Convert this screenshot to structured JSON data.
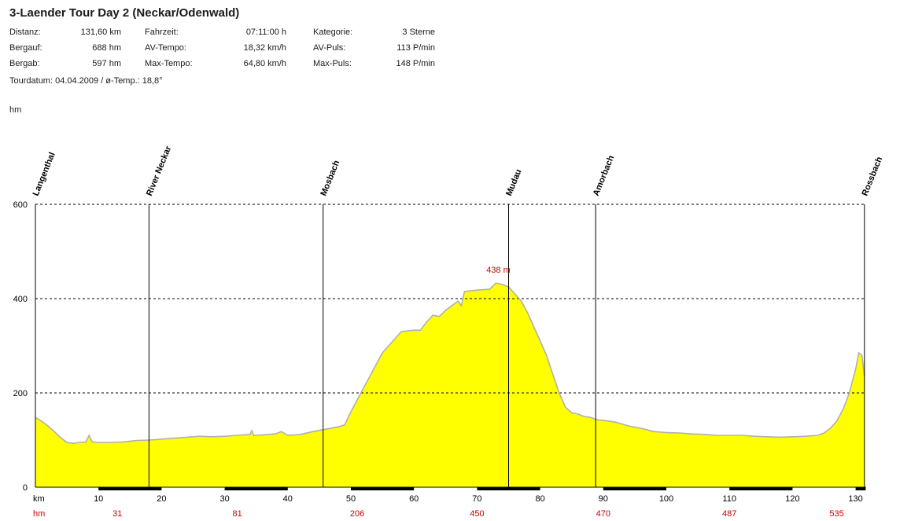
{
  "header": {
    "title": "3-Laender Tour Day 2 (Neckar/Odenwald)",
    "stats": [
      [
        {
          "label": "Distanz:",
          "value": "131,60 km"
        },
        {
          "label": "Fahrzeit:",
          "value": "07:11:00 h"
        },
        {
          "label": "Kategorie:",
          "value": "3 Sterne"
        }
      ],
      [
        {
          "label": "Bergauf:",
          "value": "688 hm"
        },
        {
          "label": "AV-Tempo:",
          "value": "18,32 km/h"
        },
        {
          "label": "AV-Puls:",
          "value": "113 P/min"
        }
      ],
      [
        {
          "label": "Bergab:",
          "value": "597 hm"
        },
        {
          "label": "Max-Tempo:",
          "value": "64,80 km/h"
        },
        {
          "label": "Max-Puls:",
          "value": "148 P/min"
        }
      ]
    ],
    "tour_line": "Tourdatum: 04.04.2009  /  ø-Temp.: 18,8°"
  },
  "chart_data": {
    "type": "area",
    "xlabel": "km",
    "ylabel": "hm",
    "xlim": [
      0,
      131.6
    ],
    "ylim": [
      0,
      600
    ],
    "grid": true,
    "x_ticks": [
      10,
      20,
      30,
      40,
      50,
      60,
      70,
      80,
      90,
      100,
      110,
      120,
      130
    ],
    "y_ticks": [
      0,
      200,
      400,
      600
    ],
    "hm_row": [
      {
        "km": 13,
        "hm": "31"
      },
      {
        "km": 32,
        "hm": "81"
      },
      {
        "km": 51,
        "hm": "206"
      },
      {
        "km": 70,
        "hm": "450"
      },
      {
        "km": 90,
        "hm": "470"
      },
      {
        "km": 110,
        "hm": "487"
      },
      {
        "km": 127,
        "hm": "535"
      }
    ],
    "waypoints": [
      {
        "name": "Langenthal",
        "km": 0
      },
      {
        "name": "River Neckar",
        "km": 18
      },
      {
        "name": "Mosbach",
        "km": 45.6
      },
      {
        "name": "Mudau",
        "km": 75
      },
      {
        "name": "Amorbach",
        "km": 88.8
      },
      {
        "name": "Rossbach",
        "km": 131.4
      }
    ],
    "peak_label": {
      "text": "438 m",
      "km": 74,
      "hm": 438
    },
    "fill_color": "#ffff00",
    "line_color": "#b0b0b0",
    "profile": [
      [
        0,
        148
      ],
      [
        1,
        140
      ],
      [
        2,
        130
      ],
      [
        3,
        118
      ],
      [
        4,
        105
      ],
      [
        5,
        95
      ],
      [
        6,
        93
      ],
      [
        7,
        95
      ],
      [
        8,
        96
      ],
      [
        8.5,
        110
      ],
      [
        9,
        96
      ],
      [
        10,
        95
      ],
      [
        12,
        95
      ],
      [
        14,
        96
      ],
      [
        16,
        99
      ],
      [
        18,
        100
      ],
      [
        20,
        102
      ],
      [
        22,
        104
      ],
      [
        24,
        106
      ],
      [
        26,
        108
      ],
      [
        28,
        107
      ],
      [
        30,
        108
      ],
      [
        32,
        110
      ],
      [
        34,
        112
      ],
      [
        34.3,
        120
      ],
      [
        34.6,
        110
      ],
      [
        36,
        111
      ],
      [
        38,
        113
      ],
      [
        39,
        118
      ],
      [
        40,
        110
      ],
      [
        42,
        112
      ],
      [
        44,
        118
      ],
      [
        46,
        123
      ],
      [
        48,
        128
      ],
      [
        49,
        132
      ],
      [
        50,
        160
      ],
      [
        51,
        185
      ],
      [
        52,
        210
      ],
      [
        53,
        235
      ],
      [
        54,
        260
      ],
      [
        55,
        285
      ],
      [
        56,
        300
      ],
      [
        57,
        315
      ],
      [
        58,
        330
      ],
      [
        60,
        333
      ],
      [
        61,
        333
      ],
      [
        62,
        350
      ],
      [
        63,
        365
      ],
      [
        64,
        362
      ],
      [
        65,
        375
      ],
      [
        66,
        385
      ],
      [
        67,
        395
      ],
      [
        67.5,
        385
      ],
      [
        68,
        415
      ],
      [
        70,
        418
      ],
      [
        72,
        420
      ],
      [
        73,
        433
      ],
      [
        74,
        430
      ],
      [
        75,
        425
      ],
      [
        76,
        410
      ],
      [
        77,
        395
      ],
      [
        78,
        370
      ],
      [
        79,
        340
      ],
      [
        80,
        310
      ],
      [
        81,
        280
      ],
      [
        82,
        240
      ],
      [
        83,
        200
      ],
      [
        84,
        170
      ],
      [
        85,
        158
      ],
      [
        86,
        155
      ],
      [
        87,
        150
      ],
      [
        88,
        148
      ],
      [
        89,
        143
      ],
      [
        90,
        142
      ],
      [
        92,
        138
      ],
      [
        94,
        130
      ],
      [
        96,
        125
      ],
      [
        98,
        118
      ],
      [
        100,
        116
      ],
      [
        102,
        115
      ],
      [
        104,
        113
      ],
      [
        106,
        112
      ],
      [
        108,
        110
      ],
      [
        110,
        110
      ],
      [
        112,
        110
      ],
      [
        114,
        108
      ],
      [
        116,
        107
      ],
      [
        118,
        106
      ],
      [
        120,
        107
      ],
      [
        122,
        108
      ],
      [
        124,
        110
      ],
      [
        125,
        115
      ],
      [
        126,
        125
      ],
      [
        127,
        140
      ],
      [
        128,
        165
      ],
      [
        129,
        200
      ],
      [
        130,
        250
      ],
      [
        130.5,
        285
      ],
      [
        131,
        280
      ],
      [
        131.4,
        235
      ]
    ]
  }
}
